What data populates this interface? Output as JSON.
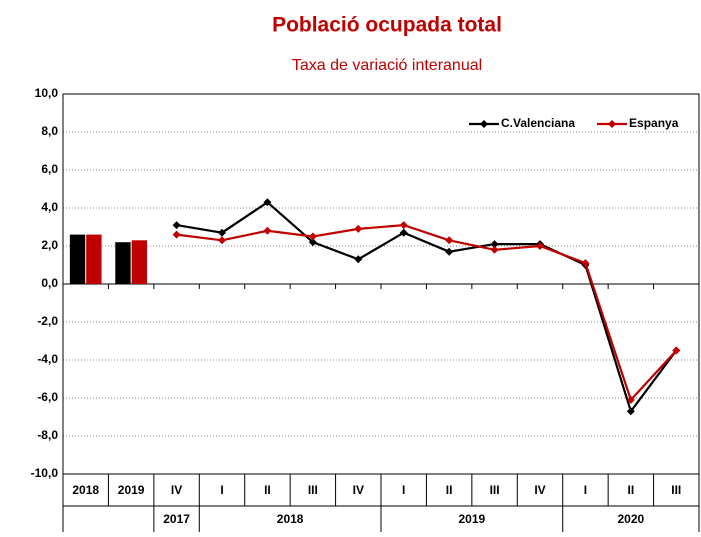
{
  "chart_data": [
    {
      "type": "bar",
      "title": "Població ocupada total",
      "subtitle": "Taxa de variació interanual",
      "categories": [
        "2018",
        "2019"
      ],
      "series": [
        {
          "color": "#000000",
          "values": [
            2.6,
            2.2
          ]
        },
        {
          "color": "#c00000",
          "values": [
            2.6,
            2.3
          ]
        }
      ],
      "ylim": [
        -10,
        10
      ],
      "yticks": [
        {
          "value": -10,
          "label": "-10,0"
        },
        {
          "value": -8,
          "label": "-8,0"
        },
        {
          "value": -6,
          "label": "-6,0"
        },
        {
          "value": -4,
          "label": "-4,0"
        },
        {
          "value": -2,
          "label": "-2,0"
        },
        {
          "value": 0,
          "label": "0,0"
        },
        {
          "value": 2,
          "label": "2,0"
        },
        {
          "value": 4,
          "label": "4,0"
        },
        {
          "value": 6,
          "label": "6,0"
        },
        {
          "value": 8,
          "label": "8,0"
        },
        {
          "value": 10,
          "label": "10,0"
        }
      ],
      "grid": true
    },
    {
      "type": "line",
      "groups": [
        {
          "label": "2017",
          "categories": [
            "IV"
          ]
        },
        {
          "label": "2018",
          "categories": [
            "I",
            "II",
            "III",
            "IV"
          ]
        },
        {
          "label": "2019",
          "categories": [
            "I",
            "II",
            "III",
            "IV"
          ]
        },
        {
          "label": "2020",
          "categories": [
            "I",
            "II",
            "III"
          ]
        }
      ],
      "series": [
        {
          "name": "C.Valenciana",
          "color": "#000000",
          "values": [
            3.1,
            2.7,
            4.3,
            2.2,
            1.3,
            2.7,
            1.7,
            2.1,
            2.1,
            1.0,
            -6.7,
            -3.5
          ]
        },
        {
          "name": "Espanya",
          "color": "#c00000",
          "values": [
            2.6,
            2.3,
            2.8,
            2.5,
            2.9,
            3.1,
            2.3,
            1.8,
            2.0,
            1.1,
            -6.1,
            -3.5
          ]
        }
      ],
      "legend": "top right"
    }
  ]
}
